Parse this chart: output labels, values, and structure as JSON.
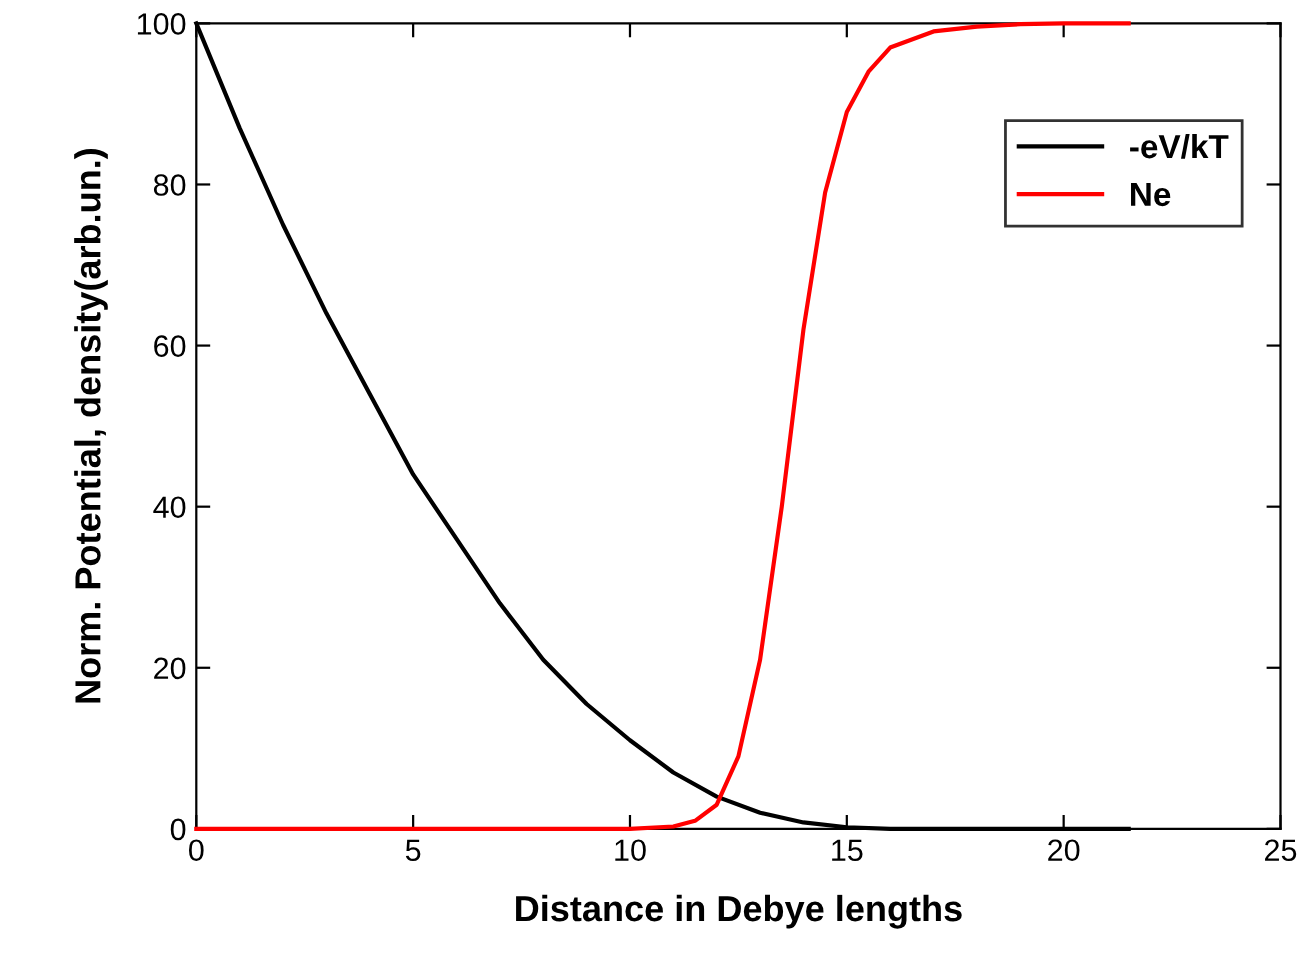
{
  "chart_data": {
    "type": "line",
    "xlabel": "Distance in Debye lengths",
    "ylabel": "Norm. Potential, density(arb.un.)",
    "xlim": [
      0,
      25
    ],
    "ylim": [
      0,
      100
    ],
    "xticks": [
      0,
      5,
      10,
      15,
      20,
      25
    ],
    "yticks": [
      0,
      20,
      40,
      60,
      80,
      100
    ],
    "grid": false,
    "legend": "top right",
    "marker": "none",
    "line_style": "solid",
    "series": [
      {
        "name": "-eV/kT",
        "color": "#000000",
        "x": [
          0,
          1,
          2,
          3,
          4,
          5,
          6,
          7,
          8,
          9,
          10,
          11,
          12,
          13,
          14,
          15,
          16,
          17,
          18,
          20,
          21.5
        ],
        "values": [
          100,
          87,
          75,
          64,
          54,
          44,
          36,
          28,
          21,
          15.5,
          11,
          7,
          4,
          2,
          0.8,
          0.2,
          0,
          0,
          0,
          0,
          0
        ]
      },
      {
        "name": "Ne",
        "color": "#ff0000",
        "x": [
          0,
          5,
          10,
          11,
          11.5,
          12,
          12.5,
          13,
          13.5,
          14,
          14.5,
          15,
          15.5,
          16,
          17,
          18,
          19,
          20,
          21.5
        ],
        "values": [
          0,
          0,
          0,
          0.3,
          1,
          3,
          9,
          21,
          40,
          62,
          79,
          89,
          94,
          97,
          99,
          99.6,
          99.9,
          100,
          100
        ]
      }
    ]
  }
}
